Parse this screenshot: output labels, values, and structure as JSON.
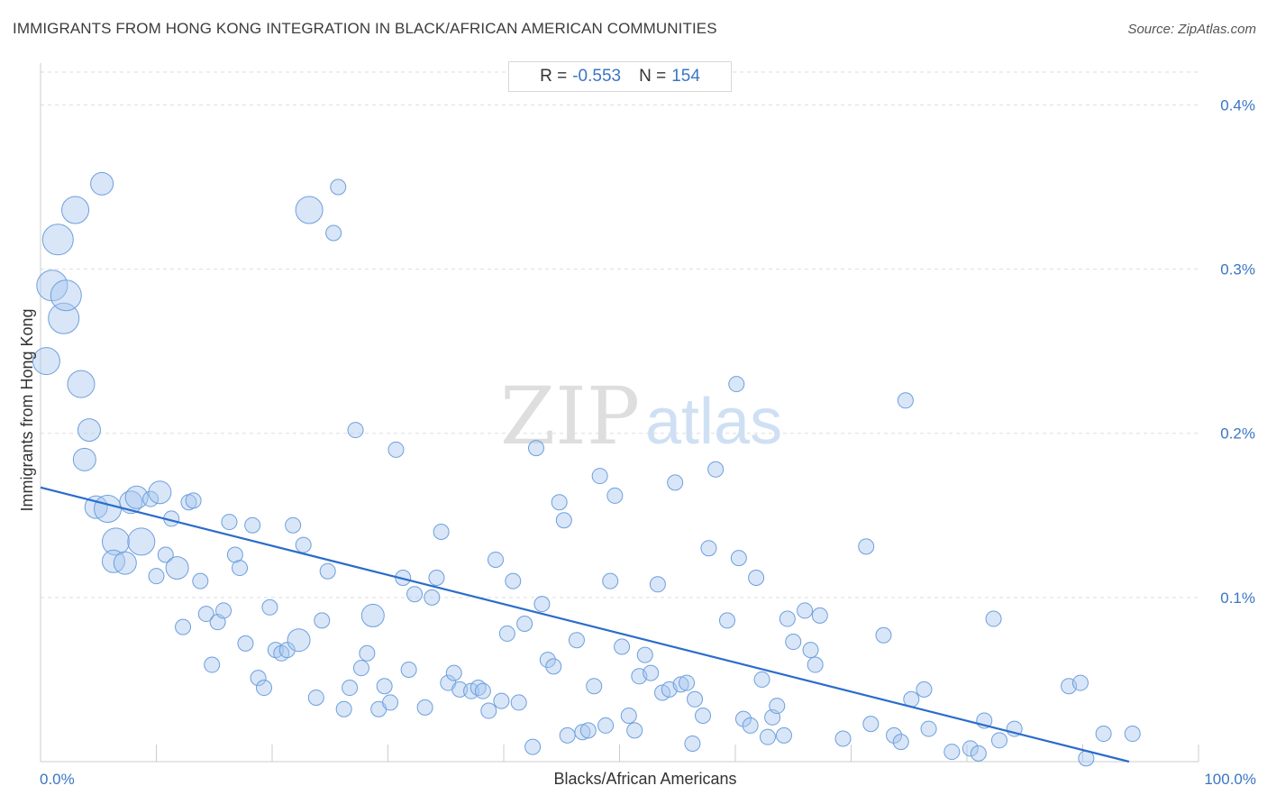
{
  "title": "IMMIGRANTS FROM HONG KONG INTEGRATION IN BLACK/AFRICAN AMERICAN COMMUNITIES",
  "source": "Source: ZipAtlas.com",
  "watermark": {
    "zip": "ZIP",
    "atlas": "atlas"
  },
  "stats": {
    "r_label": "R =",
    "r_value": "-0.553",
    "n_label": "N =",
    "n_value": "154"
  },
  "colors": {
    "point_fill": "#a9c8ef",
    "point_stroke": "#6e9fdc",
    "trend": "#2a6ccc",
    "grid": "#dddddd",
    "label": "#3a76c4"
  },
  "chart_data": {
    "type": "scatter",
    "xlabel": "Blacks/African Americans",
    "ylabel": "Immigrants from Hong Kong",
    "xlim": [
      0,
      100
    ],
    "ylim": [
      0,
      0.42
    ],
    "x_tick_labels": [
      "0.0%",
      "100.0%"
    ],
    "y_ticks": [
      0.1,
      0.2,
      0.3,
      0.4
    ],
    "y_tick_labels": [
      "0.1%",
      "0.2%",
      "0.3%",
      "0.4%"
    ],
    "trend_line": {
      "x": [
        0,
        94
      ],
      "y": [
        0.167,
        0.0
      ]
    },
    "points": [
      [
        0.5,
        0.244,
        3
      ],
      [
        1,
        0.29,
        4
      ],
      [
        1.5,
        0.318,
        4
      ],
      [
        2,
        0.27,
        4
      ],
      [
        2.2,
        0.284,
        4
      ],
      [
        3,
        0.336,
        3
      ],
      [
        3.5,
        0.23,
        3
      ],
      [
        4.2,
        0.202,
        2
      ],
      [
        3.8,
        0.184,
        2
      ],
      [
        5.3,
        0.352,
        2
      ],
      [
        4.8,
        0.155,
        2
      ],
      [
        5.8,
        0.154,
        3
      ],
      [
        6.5,
        0.134,
        3
      ],
      [
        6.3,
        0.122,
        2
      ],
      [
        7.3,
        0.121,
        2
      ],
      [
        7.8,
        0.158,
        2
      ],
      [
        8.3,
        0.161,
        2
      ],
      [
        8.7,
        0.134,
        3
      ],
      [
        9.5,
        0.16,
        1
      ],
      [
        10,
        0.113,
        1
      ],
      [
        10.3,
        0.164,
        2
      ],
      [
        10.8,
        0.126,
        1
      ],
      [
        11.3,
        0.148,
        1
      ],
      [
        11.8,
        0.118,
        2
      ],
      [
        12.3,
        0.082,
        1
      ],
      [
        12.8,
        0.158,
        1
      ],
      [
        13.2,
        0.159,
        1
      ],
      [
        13.8,
        0.11,
        1
      ],
      [
        14.3,
        0.09,
        1
      ],
      [
        14.8,
        0.059,
        1
      ],
      [
        15.3,
        0.085,
        1
      ],
      [
        15.8,
        0.092,
        1
      ],
      [
        16.3,
        0.146,
        1
      ],
      [
        16.8,
        0.126,
        1
      ],
      [
        17.2,
        0.118,
        1
      ],
      [
        17.7,
        0.072,
        1
      ],
      [
        18.3,
        0.144,
        1
      ],
      [
        18.8,
        0.051,
        1
      ],
      [
        19.3,
        0.045,
        1
      ],
      [
        19.8,
        0.094,
        1
      ],
      [
        20.3,
        0.068,
        1
      ],
      [
        20.8,
        0.066,
        1
      ],
      [
        21.3,
        0.068,
        1
      ],
      [
        21.8,
        0.144,
        1
      ],
      [
        22.3,
        0.074,
        2
      ],
      [
        22.7,
        0.132,
        1
      ],
      [
        23.2,
        0.336,
        3
      ],
      [
        23.8,
        0.039,
        1
      ],
      [
        24.3,
        0.086,
        1
      ],
      [
        24.8,
        0.116,
        1
      ],
      [
        25.3,
        0.322,
        1
      ],
      [
        25.7,
        0.35,
        1
      ],
      [
        26.2,
        0.032,
        1
      ],
      [
        26.7,
        0.045,
        1
      ],
      [
        27.2,
        0.202,
        1
      ],
      [
        27.7,
        0.057,
        1
      ],
      [
        28.2,
        0.066,
        1
      ],
      [
        28.7,
        0.089,
        2
      ],
      [
        29.2,
        0.032,
        1
      ],
      [
        29.7,
        0.046,
        1
      ],
      [
        30.2,
        0.036,
        1
      ],
      [
        30.7,
        0.19,
        1
      ],
      [
        31.3,
        0.112,
        1
      ],
      [
        31.8,
        0.056,
        1
      ],
      [
        32.3,
        0.102,
        1
      ],
      [
        33.2,
        0.033,
        1
      ],
      [
        33.8,
        0.1,
        1
      ],
      [
        34.2,
        0.112,
        1
      ],
      [
        34.6,
        0.14,
        1
      ],
      [
        35.2,
        0.048,
        1
      ],
      [
        35.7,
        0.054,
        1
      ],
      [
        36.2,
        0.044,
        1
      ],
      [
        37.2,
        0.043,
        1
      ],
      [
        37.8,
        0.045,
        1
      ],
      [
        38.2,
        0.043,
        1
      ],
      [
        38.7,
        0.031,
        1
      ],
      [
        39.3,
        0.123,
        1
      ],
      [
        39.8,
        0.037,
        1
      ],
      [
        40.3,
        0.078,
        1
      ],
      [
        40.8,
        0.11,
        1
      ],
      [
        41.3,
        0.036,
        1
      ],
      [
        41.8,
        0.084,
        1
      ],
      [
        42.5,
        0.009,
        1
      ],
      [
        42.8,
        0.191,
        1
      ],
      [
        43.3,
        0.096,
        1
      ],
      [
        43.8,
        0.062,
        1
      ],
      [
        44.3,
        0.058,
        1
      ],
      [
        44.8,
        0.158,
        1
      ],
      [
        45.2,
        0.147,
        1
      ],
      [
        45.5,
        0.016,
        1
      ],
      [
        46.3,
        0.074,
        1
      ],
      [
        46.8,
        0.018,
        1
      ],
      [
        47.3,
        0.019,
        1
      ],
      [
        47.8,
        0.046,
        1
      ],
      [
        48.3,
        0.174,
        1
      ],
      [
        48.8,
        0.022,
        1
      ],
      [
        49.2,
        0.11,
        1
      ],
      [
        49.6,
        0.162,
        1
      ],
      [
        50.2,
        0.07,
        1
      ],
      [
        50.8,
        0.028,
        1
      ],
      [
        51.3,
        0.019,
        1
      ],
      [
        51.7,
        0.052,
        1
      ],
      [
        52.2,
        0.065,
        1
      ],
      [
        52.7,
        0.054,
        1
      ],
      [
        53.3,
        0.108,
        1
      ],
      [
        53.7,
        0.042,
        1
      ],
      [
        54.3,
        0.044,
        1
      ],
      [
        54.8,
        0.17,
        1
      ],
      [
        55.3,
        0.047,
        1
      ],
      [
        55.8,
        0.048,
        1
      ],
      [
        56.3,
        0.011,
        1
      ],
      [
        56.5,
        0.038,
        1
      ],
      [
        57.2,
        0.028,
        1
      ],
      [
        57.7,
        0.13,
        1
      ],
      [
        58.3,
        0.178,
        1
      ],
      [
        59.3,
        0.086,
        1
      ],
      [
        60.1,
        0.23,
        1
      ],
      [
        60.3,
        0.124,
        1
      ],
      [
        60.7,
        0.026,
        1
      ],
      [
        61.3,
        0.022,
        1
      ],
      [
        61.8,
        0.112,
        1
      ],
      [
        62.3,
        0.05,
        1
      ],
      [
        62.8,
        0.015,
        1
      ],
      [
        63.2,
        0.027,
        1
      ],
      [
        63.6,
        0.034,
        1
      ],
      [
        64.2,
        0.016,
        1
      ],
      [
        64.5,
        0.087,
        1
      ],
      [
        65,
        0.073,
        1
      ],
      [
        66,
        0.092,
        1
      ],
      [
        66.5,
        0.068,
        1
      ],
      [
        66.9,
        0.059,
        1
      ],
      [
        67.3,
        0.089,
        1
      ],
      [
        69.3,
        0.014,
        1
      ],
      [
        71.3,
        0.131,
        1
      ],
      [
        71.7,
        0.023,
        1
      ],
      [
        72.8,
        0.077,
        1
      ],
      [
        73.7,
        0.016,
        1
      ],
      [
        74.3,
        0.012,
        1
      ],
      [
        74.7,
        0.22,
        1
      ],
      [
        75.2,
        0.038,
        1
      ],
      [
        76.3,
        0.044,
        1
      ],
      [
        76.7,
        0.02,
        1
      ],
      [
        78.7,
        0.006,
        1
      ],
      [
        80.3,
        0.008,
        1
      ],
      [
        81,
        0.005,
        1
      ],
      [
        81.5,
        0.025,
        1
      ],
      [
        82.3,
        0.087,
        1
      ],
      [
        82.8,
        0.013,
        1
      ],
      [
        84.1,
        0.02,
        1
      ],
      [
        88.8,
        0.046,
        1
      ],
      [
        89.8,
        0.048,
        1
      ],
      [
        90.3,
        0.002,
        1
      ],
      [
        91.8,
        0.017,
        1
      ],
      [
        94.3,
        0.017,
        1
      ]
    ]
  }
}
